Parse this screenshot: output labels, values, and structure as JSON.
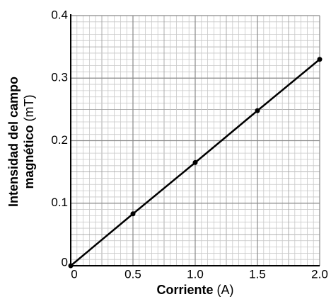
{
  "chart_data": {
    "type": "line",
    "x": [
      0,
      0.5,
      1.0,
      1.5,
      2.0
    ],
    "series": [
      {
        "color": "#000000",
        "values": [
          0,
          0.083,
          0.165,
          0.248,
          0.33
        ]
      }
    ],
    "xlabel": {
      "name": "Corriente",
      "unit": "(A)"
    },
    "ylabel": {
      "lines": [
        "Intensidad del campo",
        "magnético"
      ],
      "unit": "(mT)"
    },
    "xlim": [
      0,
      2.0
    ],
    "xticks": [
      0,
      0.5,
      {
        "value": 1.0,
        "label": "1.0"
      },
      1.5,
      {
        "value": 2.0,
        "label": "2.0"
      }
    ],
    "ylim": [
      0,
      0.4
    ],
    "yticks": [
      0,
      0.1,
      0.2,
      0.3,
      0.4
    ],
    "grid": true
  }
}
